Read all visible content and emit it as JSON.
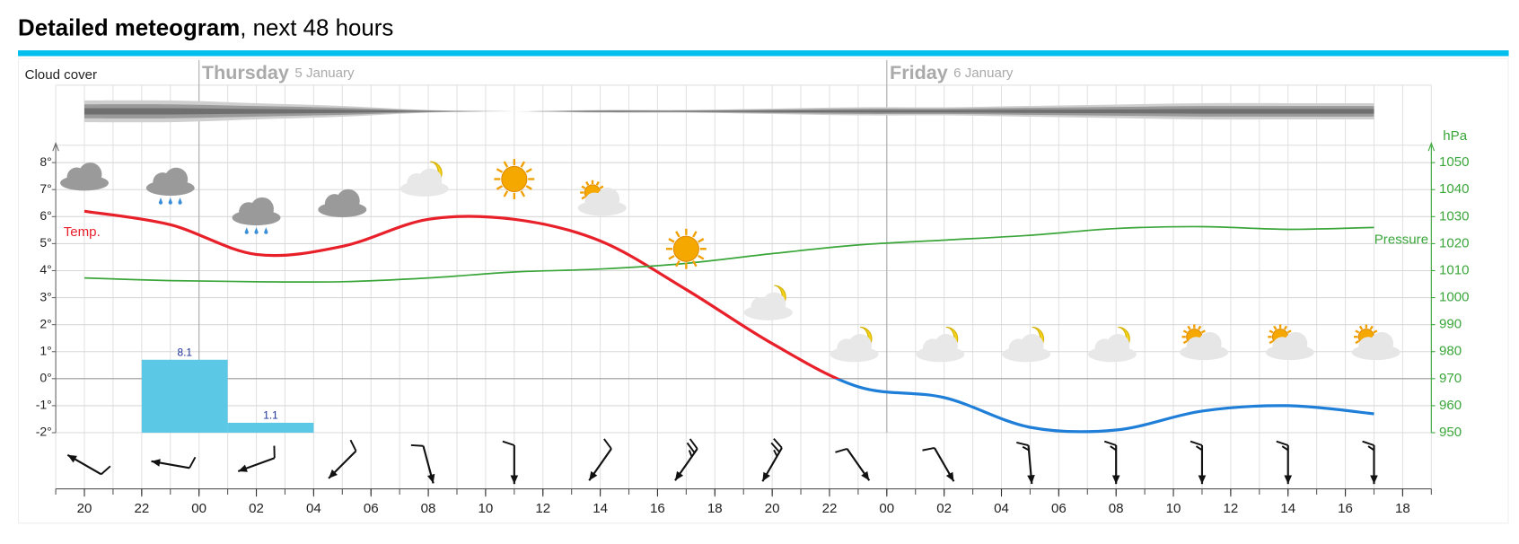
{
  "chart_data": {
    "type": "line",
    "title": "Detailed meteogram",
    "subtitle": ", next 48 hours",
    "cloud_label": "Cloud cover",
    "days": [
      {
        "name": "Thursday",
        "date": "5 January"
      },
      {
        "name": "Friday",
        "date": "6 January"
      }
    ],
    "xlim": [
      0,
      48
    ],
    "xticks": [
      {
        "value": 1,
        "label": "20"
      },
      {
        "value": 3,
        "label": "22"
      },
      {
        "value": 5,
        "label": "00"
      },
      {
        "value": 7,
        "label": "02"
      },
      {
        "value": 9,
        "label": "04"
      },
      {
        "value": 11,
        "label": "06"
      },
      {
        "value": 13,
        "label": "08"
      },
      {
        "value": 15,
        "label": "10"
      },
      {
        "value": 17,
        "label": "12"
      },
      {
        "value": 19,
        "label": "14"
      },
      {
        "value": 21,
        "label": "16"
      },
      {
        "value": 23,
        "label": "18"
      },
      {
        "value": 25,
        "label": "20"
      },
      {
        "value": 27,
        "label": "22"
      },
      {
        "value": 29,
        "label": "00"
      },
      {
        "value": 31,
        "label": "02"
      },
      {
        "value": 33,
        "label": "04"
      },
      {
        "value": 35,
        "label": "06"
      },
      {
        "value": 37,
        "label": "08"
      },
      {
        "value": 39,
        "label": "10"
      },
      {
        "value": 41,
        "label": "12"
      },
      {
        "value": 43,
        "label": "14"
      },
      {
        "value": 45,
        "label": "16"
      },
      {
        "value": 47,
        "label": "18"
      }
    ],
    "ylim": [
      -2,
      8
    ],
    "yticks": [
      {
        "value": -2,
        "label": "-2°"
      },
      {
        "value": -1,
        "label": "-1°"
      },
      {
        "value": 0,
        "label": "0°"
      },
      {
        "value": 1,
        "label": "1°"
      },
      {
        "value": 2,
        "label": "2°"
      },
      {
        "value": 3,
        "label": "3°"
      },
      {
        "value": 4,
        "label": "4°"
      },
      {
        "value": 5,
        "label": "5°"
      },
      {
        "value": 6,
        "label": "6°"
      },
      {
        "value": 7,
        "label": "7°"
      },
      {
        "value": 8,
        "label": "8°"
      }
    ],
    "y2_label": "hPa",
    "y2lim": [
      950,
      1050
    ],
    "y2ticks": [
      950,
      960,
      970,
      980,
      990,
      1000,
      1010,
      1020,
      1030,
      1040,
      1050
    ],
    "grid": true,
    "x": [
      1,
      4,
      7,
      10,
      13,
      16,
      19,
      22,
      25,
      28,
      31,
      34,
      37,
      40,
      43,
      46
    ],
    "series": [
      {
        "name": "Temp.",
        "color": "#e8202a",
        "negative_color": "#1f7fd8",
        "values": [
          6.2,
          5.7,
          4.6,
          4.9,
          5.9,
          5.9,
          5.1,
          3.3,
          1.3,
          -0.3,
          -0.7,
          -1.8,
          -1.9,
          -1.2,
          -1.0,
          -1.3
        ]
      },
      {
        "name": "Pressure",
        "color": "#3aa63a",
        "axis": "y2",
        "values": [
          1007.3,
          1006.3,
          1005.9,
          1005.9,
          1007.3,
          1009.5,
          1010.6,
          1012.7,
          1016.3,
          1019.5,
          1021.3,
          1023.1,
          1025.6,
          1026.3,
          1025.3,
          1026.0
        ]
      }
    ],
    "precipitation": {
      "color": "#5bc8e6",
      "label_color": "#1a2f9a",
      "ylim": [
        0,
        30
      ],
      "x_start": [
        3,
        6
      ],
      "x_end": [
        6,
        9
      ],
      "values": [
        8.1,
        1.1
      ]
    },
    "cloud_cover": [
      80,
      80,
      60,
      40,
      10,
      0,
      10,
      10,
      20,
      30,
      30,
      40,
      50,
      60,
      60,
      60
    ],
    "symbols": [
      "cloudy",
      "rain",
      "rain",
      "cloudy",
      "partly-night",
      "sun",
      "partly-sunny",
      "sun",
      "partly-night",
      "partly-night",
      "partly-night",
      "partly-night",
      "partly-night",
      "partly-sunny",
      "partly-sunny",
      "partly-sunny"
    ],
    "wind": {
      "direction": [
        120,
        100,
        70,
        45,
        345,
        0,
        35,
        35,
        30,
        325,
        330,
        355,
        0,
        0,
        0,
        0
      ],
      "speed": [
        10,
        10,
        10,
        10,
        10,
        10,
        10,
        25,
        25,
        10,
        10,
        15,
        15,
        15,
        15,
        15
      ]
    }
  }
}
